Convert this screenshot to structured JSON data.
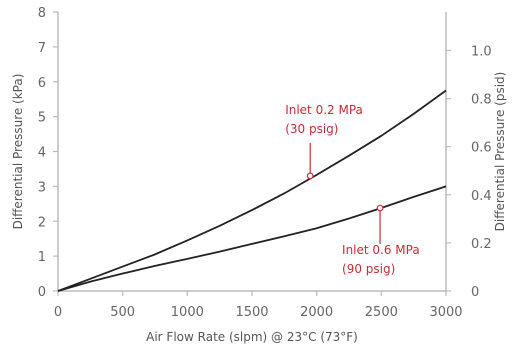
{
  "chart_data": {
    "type": "line",
    "xlabel": "Air Flow Rate (slpm) @ 23°C (73°F)",
    "ylabel": "Differential Pressure (kPa)",
    "y2label": "Differential Pressure (psid)",
    "xlim": [
      0,
      3000
    ],
    "ylim": [
      0,
      8
    ],
    "y2lim": [
      0,
      1.16
    ],
    "xticks": [
      "0",
      "500",
      "1000",
      "1500",
      "2000",
      "2500",
      "3000"
    ],
    "yticks": [
      "0",
      "1",
      "2",
      "3",
      "4",
      "5",
      "6",
      "7",
      "8"
    ],
    "y2ticks": [
      "0",
      "0.2",
      "0.4",
      "0.6",
      "0.8",
      "1.0"
    ],
    "y2tick_values": [
      0,
      0.2,
      0.4,
      0.6,
      0.8,
      1.0
    ],
    "grid": false,
    "line_color": "#222222",
    "axis_color": "#bbbbbb",
    "annotation_color": "#cc2b36",
    "series": [
      {
        "x": [
          0,
          250,
          500,
          750,
          1000,
          1250,
          1500,
          1750,
          2000,
          2250,
          2500,
          2750,
          3000
        ],
        "y": [
          0,
          0.35,
          0.7,
          1.05,
          1.45,
          1.87,
          2.32,
          2.8,
          3.33,
          3.88,
          4.45,
          5.08,
          5.75
        ]
      },
      {
        "x": [
          0,
          250,
          500,
          750,
          1000,
          1250,
          1500,
          1750,
          2000,
          2250,
          2500,
          2750,
          3000
        ],
        "y": [
          0,
          0.27,
          0.5,
          0.72,
          0.92,
          1.13,
          1.35,
          1.57,
          1.8,
          2.08,
          2.38,
          2.7,
          3.0
        ]
      }
    ],
    "annotations": [
      {
        "line1": "Inlet 0.2 MPa",
        "line2": "(30 psig)",
        "x": 1950,
        "y": 3.3
      },
      {
        "line1": "Inlet 0.6 MPa",
        "line2": "(90 psig)",
        "x": 2490,
        "y": 2.38
      }
    ]
  }
}
